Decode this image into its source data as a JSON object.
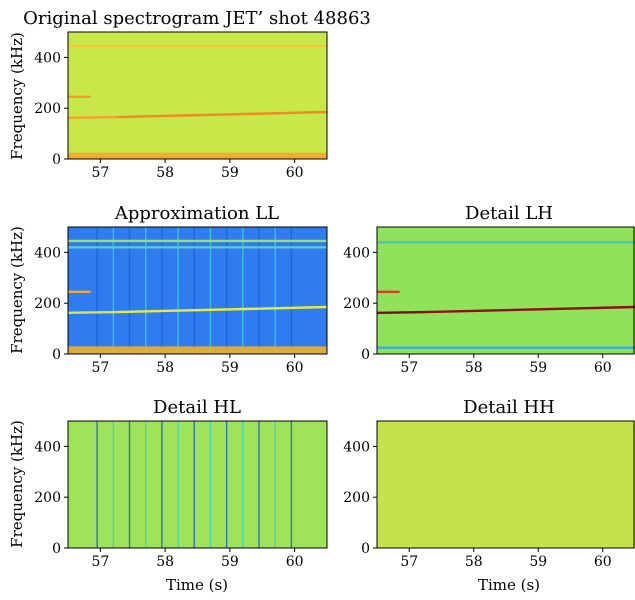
{
  "chart_data": [
    {
      "type": "heatmap",
      "title": "Original spectrogram JET’ shot 48863",
      "xlabel": "",
      "ylabel": "Frequency (kHz)",
      "xlim": [
        56.5,
        60.5
      ],
      "ylim": [
        0,
        500
      ],
      "xticks": [
        57,
        58,
        59,
        60
      ],
      "yticks": [
        0,
        200,
        400
      ],
      "colormap": "jet",
      "background_color": "#c8e84a",
      "features": [
        {
          "kind": "mode-line",
          "t_start": 56.5,
          "t_end": 56.85,
          "f_start": 245,
          "f_end": 245,
          "color": "#f39a2a"
        },
        {
          "kind": "mode-line",
          "t_start": 56.5,
          "t_end": 57.25,
          "f_start": 162,
          "f_end": 165,
          "color": "#f6a12c"
        },
        {
          "kind": "mode-line",
          "t_start": 57.25,
          "t_end": 60.5,
          "f_start": 165,
          "f_end": 185,
          "color": "#f08a24"
        },
        {
          "kind": "mode-line",
          "t_start": 56.5,
          "t_end": 60.5,
          "f_start": 445,
          "f_end": 445,
          "color": "#f4c63a"
        },
        {
          "kind": "low-band",
          "f_max": 25,
          "color": "#f5a42a"
        }
      ]
    },
    {
      "type": "heatmap",
      "title": "Approximation LL",
      "xlabel": "",
      "ylabel": "Frequency (kHz)",
      "xlim": [
        56.5,
        60.5
      ],
      "ylim": [
        0,
        500
      ],
      "xticks": [
        57,
        58,
        59,
        60
      ],
      "yticks": [
        0,
        200,
        400
      ],
      "colormap": "jet",
      "background_color": "#2f7cf0",
      "vertical_stripes_at": [
        56.95,
        57.2,
        57.45,
        57.7,
        57.95,
        58.2,
        58.45,
        58.7,
        58.95,
        59.2,
        59.45,
        59.7,
        59.95
      ],
      "features": [
        {
          "kind": "mode-line",
          "t_start": 56.5,
          "t_end": 56.85,
          "f_start": 245,
          "f_end": 245,
          "color": "#f5a52e"
        },
        {
          "kind": "mode-line",
          "t_start": 56.5,
          "t_end": 57.25,
          "f_start": 162,
          "f_end": 165,
          "color": "#d6e84a"
        },
        {
          "kind": "mode-line",
          "t_start": 57.25,
          "t_end": 60.5,
          "f_start": 165,
          "f_end": 185,
          "color": "#e6ec3a"
        },
        {
          "kind": "mode-line",
          "t_start": 56.5,
          "t_end": 60.5,
          "f_start": 445,
          "f_end": 445,
          "color": "#9fe06a"
        },
        {
          "kind": "mode-line",
          "t_start": 56.5,
          "t_end": 60.5,
          "f_start": 420,
          "f_end": 420,
          "color": "#5ec8c8"
        },
        {
          "kind": "low-band",
          "f_max": 30,
          "color": "#f0b02c"
        }
      ]
    },
    {
      "type": "heatmap",
      "title": "Detail LH",
      "xlabel": "",
      "ylabel": "",
      "xlim": [
        56.5,
        60.5
      ],
      "ylim": [
        0,
        500
      ],
      "xticks": [
        57,
        58,
        59,
        60
      ],
      "yticks": [
        0,
        200,
        400
      ],
      "colormap": "jet",
      "background_color": "#8fe25a",
      "features": [
        {
          "kind": "mode-line",
          "t_start": 56.5,
          "t_end": 57.25,
          "f_start": 162,
          "f_end": 165,
          "color": "#7a0d14"
        },
        {
          "kind": "mode-line",
          "t_start": 57.25,
          "t_end": 60.5,
          "f_start": 165,
          "f_end": 185,
          "color": "#8b1217"
        },
        {
          "kind": "mode-line",
          "t_start": 56.5,
          "t_end": 56.85,
          "f_start": 245,
          "f_end": 245,
          "color": "#e33a24"
        },
        {
          "kind": "mode-line",
          "t_start": 56.5,
          "t_end": 60.5,
          "f_start": 440,
          "f_end": 440,
          "color": "#4cc7b0"
        },
        {
          "kind": "mode-line",
          "t_start": 56.5,
          "t_end": 60.5,
          "f_start": 25,
          "f_end": 25,
          "color": "#3aa8e0"
        }
      ]
    },
    {
      "type": "heatmap",
      "title": "Detail HL",
      "xlabel": "Time (s)",
      "ylabel": "Frequency (kHz)",
      "xlim": [
        56.5,
        60.5
      ],
      "ylim": [
        0,
        500
      ],
      "xticks": [
        57,
        58,
        59,
        60
      ],
      "yticks": [
        0,
        200,
        400
      ],
      "colormap": "jet",
      "background_color": "#9fe35a",
      "vertical_stripes_at": [
        56.95,
        57.2,
        57.45,
        57.7,
        57.95,
        58.2,
        58.45,
        58.7,
        58.95,
        59.2,
        59.45,
        59.7,
        59.95
      ],
      "features": []
    },
    {
      "type": "heatmap",
      "title": "Detail HH",
      "xlabel": "Time (s)",
      "ylabel": "",
      "xlim": [
        56.5,
        60.5
      ],
      "ylim": [
        0,
        500
      ],
      "xticks": [
        57,
        58,
        59,
        60
      ],
      "yticks": [
        0,
        200,
        400
      ],
      "colormap": "jet",
      "background_color": "#c5e24c",
      "features": []
    }
  ]
}
